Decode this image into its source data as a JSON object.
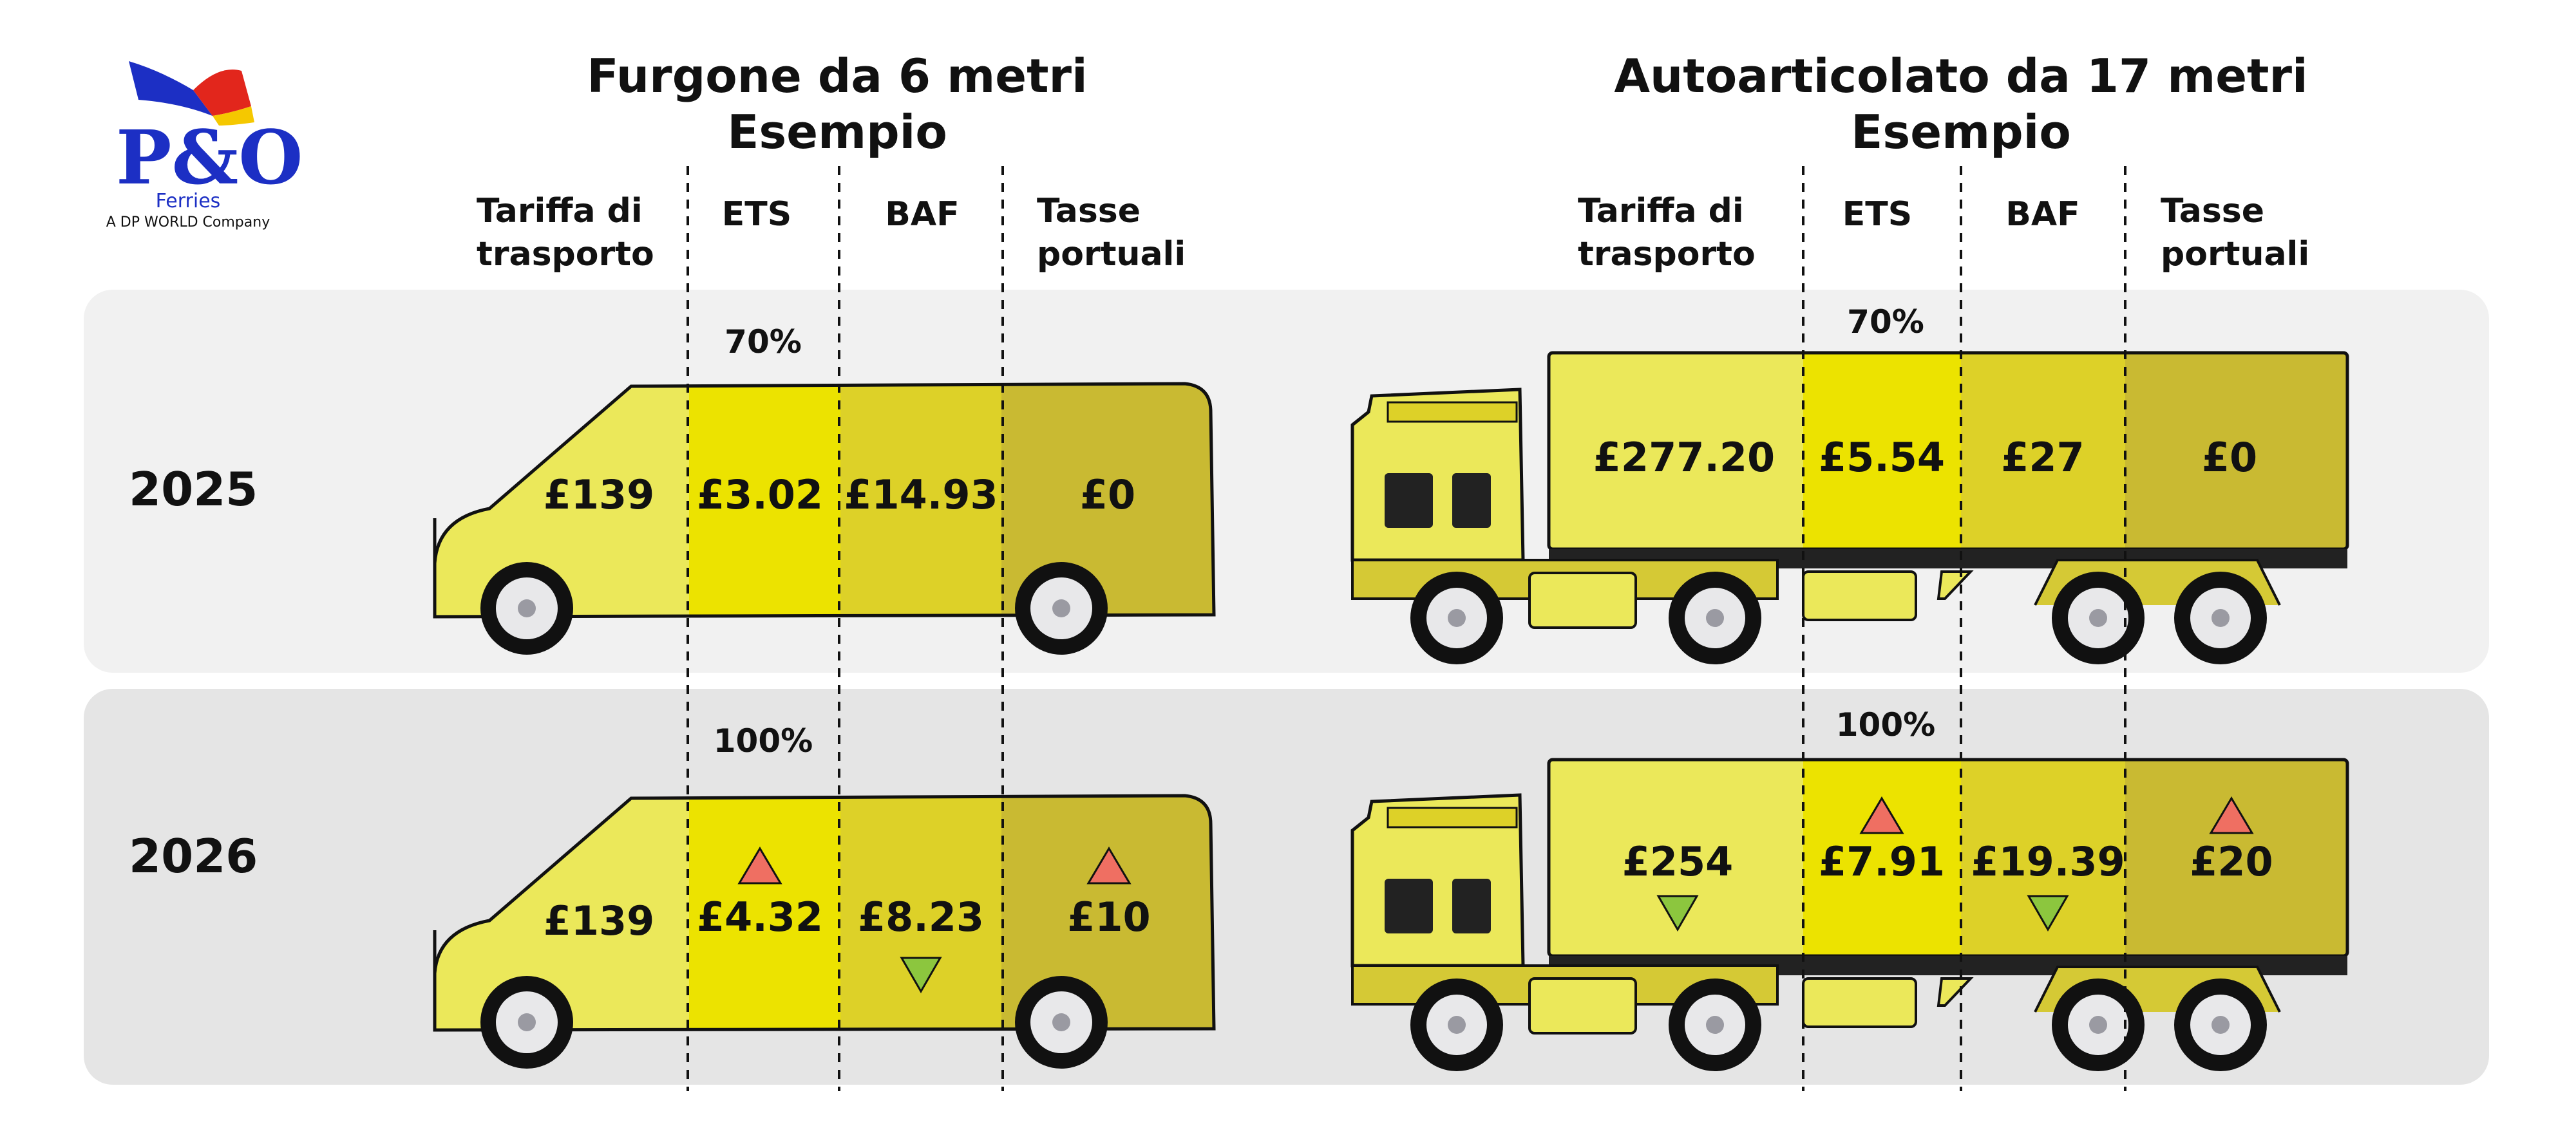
{
  "brand": {
    "logo_text": "P&O",
    "logo_sub": "Ferries",
    "tagline": "A DP WORLD Company",
    "colors": {
      "blue": "#1c2fc4",
      "red": "#e2261c",
      "yellow": "#f5c800"
    }
  },
  "colors": {
    "panel_2025": "#f1f1f1",
    "panel_2026": "#e5e5e5",
    "seg_tariff": "#ebe85a",
    "seg_ets": "#ece300",
    "seg_baf": "#ddd128",
    "seg_port": "#c9ba32",
    "up_arrow": "#ef6f62",
    "down_arrow": "#8cc63e"
  },
  "van": {
    "title_line1": "Furgone da 6 metri",
    "title_line2": "Esempio",
    "columns": {
      "tariff_l1": "Tariffa di",
      "tariff_l2": "trasporto",
      "ets": "ETS",
      "baf": "BAF",
      "port_l1": "Tasse",
      "port_l2": "portuali"
    }
  },
  "truck": {
    "title_line1": "Autoarticolato da 17 metri",
    "title_line2": "Esempio",
    "columns": {
      "tariff_l1": "Tariffa di",
      "tariff_l2": "trasporto",
      "ets": "ETS",
      "baf": "BAF",
      "port_l1": "Tasse",
      "port_l2": "portuali"
    }
  },
  "rows": [
    {
      "year": "2025",
      "van": {
        "ets_pct": "70%",
        "tariff": "£139",
        "ets": "£3.02",
        "baf": "£14.93",
        "port": "£0"
      },
      "truck": {
        "ets_pct": "70%",
        "tariff": "£277.20",
        "ets": "£5.54",
        "baf": "£27",
        "port": "£0"
      }
    },
    {
      "year": "2026",
      "van": {
        "ets_pct": "100%",
        "tariff": "£139",
        "ets": "£4.32",
        "baf": "£8.23",
        "port": "£10",
        "trend": {
          "tariff": "none",
          "ets": "up",
          "baf": "down",
          "port": "up"
        }
      },
      "truck": {
        "ets_pct": "100%",
        "tariff": "£254",
        "ets": "£7.91",
        "baf": "£19.39",
        "port": "£20",
        "trend": {
          "tariff": "down",
          "ets": "up",
          "baf": "down",
          "port": "up"
        }
      }
    }
  ]
}
